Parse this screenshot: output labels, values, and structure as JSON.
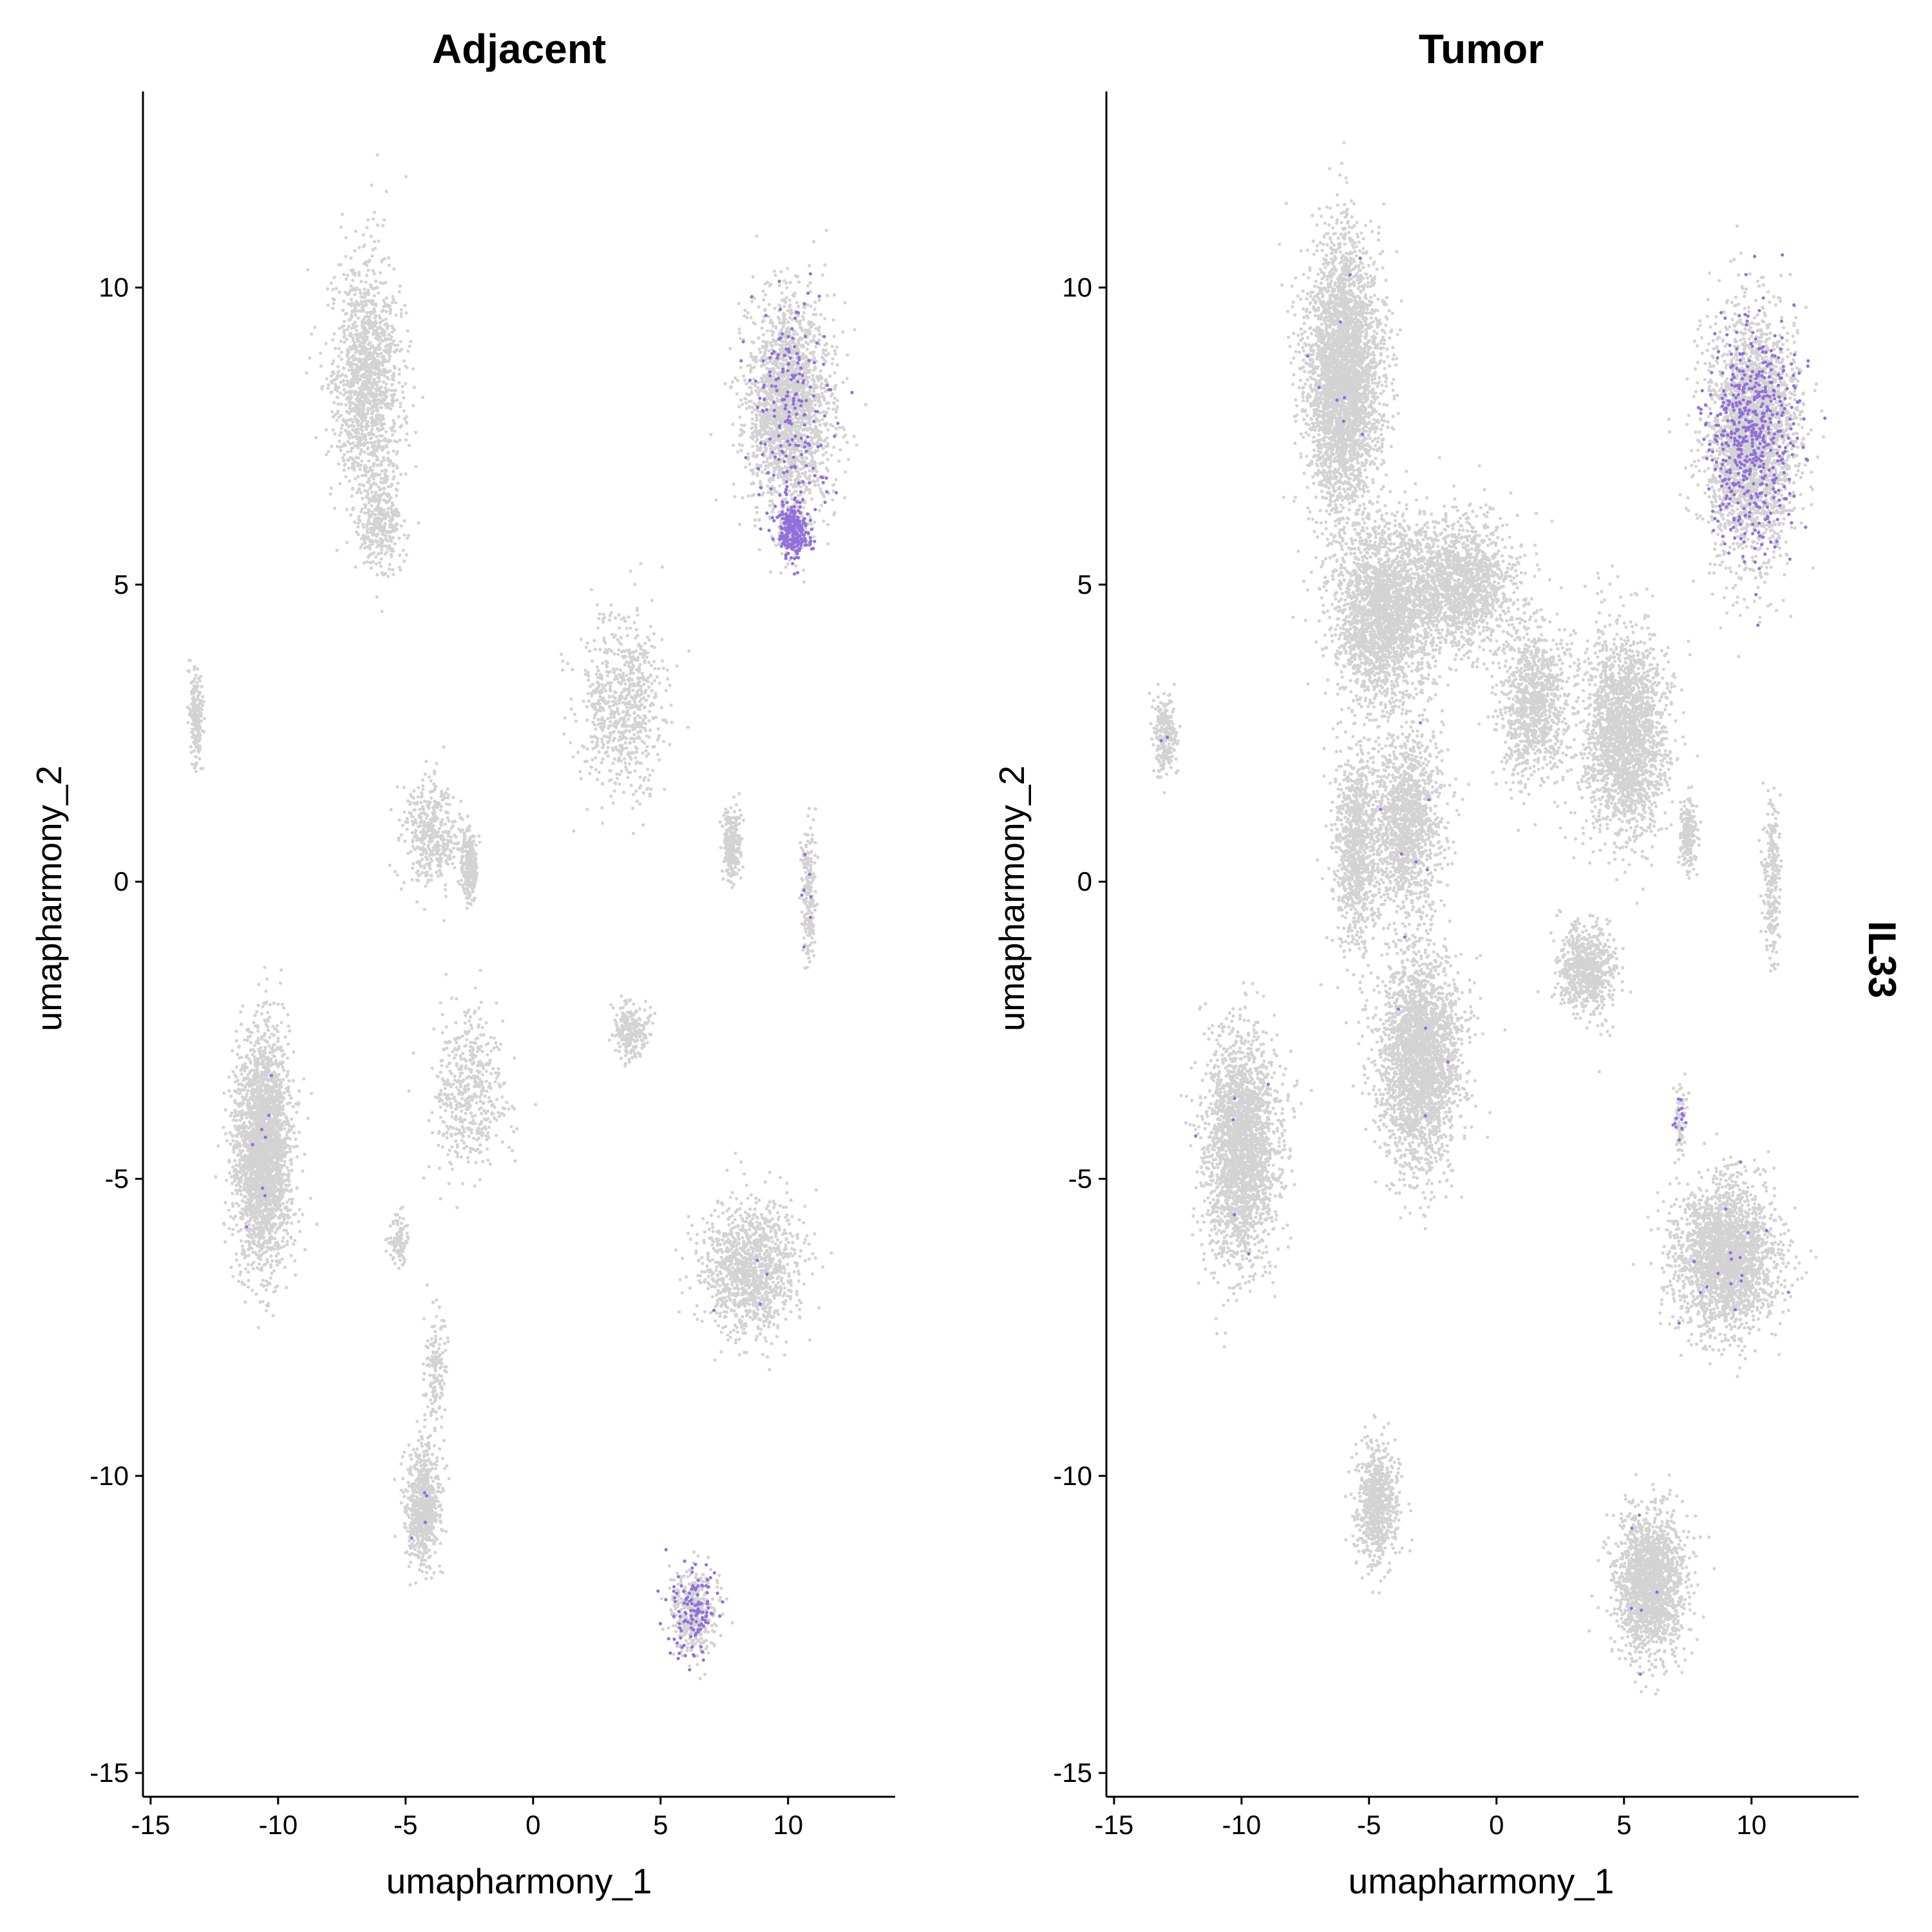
{
  "chart_data": {
    "type": "scatter",
    "feature": "IL33",
    "color_low": "#d3d3d3",
    "color_high": "#9370db",
    "xlabel": "umapharmony_1",
    "ylabel": "umapharmony_2",
    "xlim": [
      -15.3,
      14.2
    ],
    "ylim": [
      -15.4,
      13.3
    ],
    "x_ticks": [
      -15,
      -10,
      -5,
      0,
      5,
      10
    ],
    "y_ticks": [
      -15,
      -10,
      -5,
      0,
      5,
      10
    ],
    "x_tick_labels": [
      "-15",
      "-10",
      "-5",
      "0",
      "5",
      "10"
    ],
    "y_tick_labels": [
      "-15",
      "-10",
      "-5",
      "0",
      "5",
      "10"
    ],
    "panels": [
      {
        "title": "Adjacent",
        "clusters": [
          {
            "id": "c1",
            "center": [
              -6.5,
              8.5
            ],
            "spread": [
              1.2,
              1.8
            ],
            "n": 1400,
            "expr": 0.0
          },
          {
            "id": "c2",
            "center": [
              -6.0,
              6.0
            ],
            "spread": [
              0.8,
              0.7
            ],
            "n": 300,
            "expr": 0.0
          },
          {
            "id": "c3",
            "center": [
              10.0,
              8.0
            ],
            "spread": [
              1.5,
              1.6
            ],
            "n": 2200,
            "expr": 0.1
          },
          {
            "id": "c4",
            "center": [
              10.2,
              5.9
            ],
            "spread": [
              0.6,
              0.4
            ],
            "n": 400,
            "expr": 0.55
          },
          {
            "id": "c5",
            "center": [
              -13.2,
              2.8
            ],
            "spread": [
              0.25,
              0.7
            ],
            "n": 200,
            "expr": 0.0
          },
          {
            "id": "c6",
            "center": [
              3.5,
              3.0
            ],
            "spread": [
              1.5,
              1.3
            ],
            "n": 700,
            "expr": 0.0
          },
          {
            "id": "c7",
            "center": [
              -4.0,
              0.8
            ],
            "spread": [
              1.0,
              0.8
            ],
            "n": 400,
            "expr": 0.0
          },
          {
            "id": "c8",
            "center": [
              -2.5,
              0.3
            ],
            "spread": [
              0.3,
              0.5
            ],
            "n": 300,
            "expr": 0.0
          },
          {
            "id": "c9",
            "center": [
              7.8,
              0.6
            ],
            "spread": [
              0.3,
              0.5
            ],
            "n": 300,
            "expr": 0.0
          },
          {
            "id": "c10",
            "center": [
              10.8,
              -0.2
            ],
            "spread": [
              0.25,
              1.0
            ],
            "n": 200,
            "expr": 0.05
          },
          {
            "id": "c11",
            "center": [
              -10.6,
              -4.5
            ],
            "spread": [
              1.0,
              1.7
            ],
            "n": 2600,
            "expr": 0.003
          },
          {
            "id": "c12",
            "center": [
              -2.5,
              -3.5
            ],
            "spread": [
              1.3,
              1.2
            ],
            "n": 500,
            "expr": 0.0
          },
          {
            "id": "c13",
            "center": [
              3.8,
              -2.5
            ],
            "spread": [
              0.7,
              0.4
            ],
            "n": 250,
            "expr": 0.0
          },
          {
            "id": "c14",
            "center": [
              8.5,
              -6.5
            ],
            "spread": [
              1.7,
              1.0
            ],
            "n": 1200,
            "expr": 0.004
          },
          {
            "id": "c15",
            "center": [
              -4.3,
              -10.5
            ],
            "spread": [
              0.6,
              0.9
            ],
            "n": 700,
            "expr": 0.004
          },
          {
            "id": "c16",
            "center": [
              6.3,
              -12.3
            ],
            "spread": [
              0.8,
              0.7
            ],
            "n": 500,
            "expr": 0.25
          },
          {
            "id": "c17",
            "center": [
              -5.3,
              -6.0
            ],
            "spread": [
              0.3,
              0.4
            ],
            "n": 100,
            "expr": 0.0
          },
          {
            "id": "c18",
            "center": [
              -3.8,
              -8.2
            ],
            "spread": [
              0.4,
              0.9
            ],
            "n": 150,
            "expr": 0.0
          }
        ]
      },
      {
        "title": "Tumor",
        "clusters": [
          {
            "id": "t1",
            "center": [
              -6.0,
              8.5
            ],
            "spread": [
              1.3,
              2.0
            ],
            "n": 3500,
            "expr": 0.002
          },
          {
            "id": "t2",
            "center": [
              -4.5,
              4.5
            ],
            "spread": [
              1.8,
              1.4
            ],
            "n": 2200,
            "expr": 0.0
          },
          {
            "id": "t3",
            "center": [
              -1.5,
              5.0
            ],
            "spread": [
              2.0,
              1.0
            ],
            "n": 1600,
            "expr": 0.0
          },
          {
            "id": "t4",
            "center": [
              10.0,
              7.5
            ],
            "spread": [
              1.6,
              1.8
            ],
            "n": 3200,
            "expr": 0.18
          },
          {
            "id": "t5",
            "center": [
              5.0,
              2.5
            ],
            "spread": [
              1.5,
              1.5
            ],
            "n": 2200,
            "expr": 0.0
          },
          {
            "id": "t6",
            "center": [
              1.5,
              3.0
            ],
            "spread": [
              1.2,
              1.2
            ],
            "n": 1000,
            "expr": 0.0
          },
          {
            "id": "t7",
            "center": [
              -3.5,
              1.0
            ],
            "spread": [
              1.2,
              1.4
            ],
            "n": 1400,
            "expr": 0.003
          },
          {
            "id": "t8",
            "center": [
              -5.5,
              0.5
            ],
            "spread": [
              0.8,
              1.5
            ],
            "n": 900,
            "expr": 0.0
          },
          {
            "id": "t9",
            "center": [
              -13.0,
              2.5
            ],
            "spread": [
              0.4,
              0.6
            ],
            "n": 250,
            "expr": 0.01
          },
          {
            "id": "t10",
            "center": [
              7.5,
              0.8
            ],
            "spread": [
              0.3,
              0.5
            ],
            "n": 200,
            "expr": 0.0
          },
          {
            "id": "t11",
            "center": [
              10.8,
              0.0
            ],
            "spread": [
              0.3,
              1.2
            ],
            "n": 250,
            "expr": 0.0
          },
          {
            "id": "t12",
            "center": [
              -3.0,
              -3.0
            ],
            "spread": [
              1.4,
              1.6
            ],
            "n": 2600,
            "expr": 0.002
          },
          {
            "id": "t13",
            "center": [
              -10.0,
              -4.5
            ],
            "spread": [
              1.3,
              1.7
            ],
            "n": 2400,
            "expr": 0.004
          },
          {
            "id": "t14",
            "center": [
              3.5,
              -1.5
            ],
            "spread": [
              1.0,
              0.7
            ],
            "n": 700,
            "expr": 0.0
          },
          {
            "id": "t15",
            "center": [
              9.0,
              -6.3
            ],
            "spread": [
              1.8,
              1.1
            ],
            "n": 2400,
            "expr": 0.006
          },
          {
            "id": "t16",
            "center": [
              -4.7,
              -10.5
            ],
            "spread": [
              0.7,
              0.9
            ],
            "n": 700,
            "expr": 0.0
          },
          {
            "id": "t17",
            "center": [
              6.0,
              -11.8
            ],
            "spread": [
              1.2,
              1.1
            ],
            "n": 1800,
            "expr": 0.006
          },
          {
            "id": "t18",
            "center": [
              7.2,
              -4.0
            ],
            "spread": [
              0.2,
              0.5
            ],
            "n": 100,
            "expr": 0.15
          }
        ]
      }
    ]
  }
}
